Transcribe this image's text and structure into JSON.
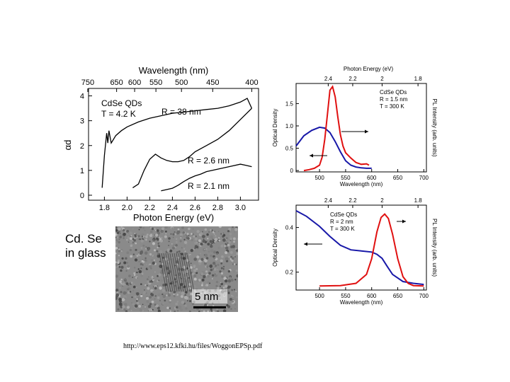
{
  "chart_data": [
    {
      "type": "line",
      "panel": "absorption-4K",
      "title_top_axis": "Wavelength (nm)",
      "top_ticks": [
        "750",
        "650",
        "600",
        "550",
        "500",
        "450",
        "400"
      ],
      "xlabel": "Photon Energy (eV)",
      "x_ticks": [
        "1.8",
        "2.0",
        "2.2",
        "2.4",
        "2.6",
        "2.8",
        "3.0"
      ],
      "xlim": [
        1.66,
        3.16
      ],
      "ylabel": "αd",
      "y_ticks": [
        "0",
        "1",
        "2",
        "3",
        "4"
      ],
      "ylim": [
        -0.2,
        4.3
      ],
      "annotation_lines": [
        "CdSe QDs",
        "T = 4.2 K"
      ],
      "series": [
        {
          "name": "R = 38 nm",
          "x": [
            1.78,
            1.8,
            1.82,
            1.83,
            1.84,
            1.86,
            1.88,
            1.9,
            1.95,
            2.0,
            2.1,
            2.2,
            2.3,
            2.4,
            2.5,
            2.6,
            2.7,
            2.8,
            2.9,
            3.0,
            3.06,
            3.1
          ],
          "y": [
            0.3,
            1.6,
            2.5,
            2.1,
            2.6,
            2.1,
            2.25,
            2.4,
            2.6,
            2.75,
            2.95,
            3.1,
            3.2,
            3.3,
            3.35,
            3.4,
            3.45,
            3.5,
            3.6,
            3.75,
            3.9,
            3.5
          ]
        },
        {
          "name": "R = 2.6 nm",
          "x": [
            2.05,
            2.1,
            2.15,
            2.2,
            2.25,
            2.3,
            2.35,
            2.4,
            2.45,
            2.5,
            2.55,
            2.6,
            2.7,
            2.8,
            2.9,
            3.0,
            3.1
          ],
          "y": [
            0.3,
            0.45,
            1.0,
            1.45,
            1.65,
            1.5,
            1.4,
            1.35,
            1.35,
            1.4,
            1.55,
            1.75,
            2.0,
            2.25,
            2.6,
            3.05,
            3.5
          ]
        },
        {
          "name": "R = 2.1 nm",
          "x": [
            2.3,
            2.4,
            2.45,
            2.5,
            2.55,
            2.6,
            2.65,
            2.7,
            2.8,
            2.9,
            3.0,
            3.05,
            3.1
          ],
          "y": [
            0.18,
            0.28,
            0.4,
            0.55,
            0.68,
            0.78,
            0.85,
            0.95,
            1.05,
            1.15,
            1.25,
            1.2,
            1.15
          ]
        }
      ],
      "curve_labels": [
        "R = 38 nm",
        "R = 2.6 nm",
        "R = 2.1 nm"
      ]
    },
    {
      "type": "line",
      "panel": "optical-density-pl-R1.5",
      "title_top_axis": "Photon Energy (eV)",
      "top_ticks": [
        "2.4",
        "2.2",
        "2",
        "1.8"
      ],
      "xlabel": "Wavelength (nm)",
      "x_ticks": [
        "500",
        "550",
        "600",
        "650",
        "700"
      ],
      "xlim": [
        455,
        705
      ],
      "ylabel": "Optical Density",
      "y_ticks": [
        "0",
        "0.5",
        "1.0",
        "1.5"
      ],
      "ylim": [
        -0.03,
        1.95
      ],
      "right_label": "PL Intensity (arb. units)",
      "annotation_lines": [
        "CdSe QDs",
        "R = 1.5 nm",
        "T = 300 K"
      ],
      "series": [
        {
          "name": "Optical Density",
          "color": "#1818a8",
          "x": [
            455,
            470,
            485,
            500,
            510,
            520,
            530,
            540,
            550,
            560,
            570,
            580,
            590,
            600
          ],
          "y": [
            0.55,
            0.78,
            0.9,
            0.97,
            0.95,
            0.85,
            0.65,
            0.42,
            0.22,
            0.12,
            0.08,
            0.06,
            0.05,
            0.05
          ]
        },
        {
          "name": "PL",
          "color": "#e01010",
          "x": [
            470,
            480,
            490,
            500,
            505,
            510,
            515,
            520,
            525,
            530,
            535,
            540,
            545,
            550,
            560,
            570,
            580,
            590,
            595
          ],
          "y": [
            0.0,
            0.02,
            0.05,
            0.12,
            0.3,
            0.7,
            1.25,
            1.8,
            1.88,
            1.65,
            1.2,
            0.8,
            0.55,
            0.4,
            0.28,
            0.18,
            0.14,
            0.15,
            0.12
          ]
        }
      ]
    },
    {
      "type": "line",
      "panel": "optical-density-pl-R2",
      "top_ticks": [
        "2.4",
        "2.2",
        "2",
        "1.8"
      ],
      "xlabel": "Wavelength (nm)",
      "x_ticks": [
        "500",
        "550",
        "600",
        "650",
        "700"
      ],
      "xlim": [
        455,
        705
      ],
      "ylabel": "Optical Density",
      "y_ticks": [
        "0.2",
        "0.4"
      ],
      "ylim": [
        0.12,
        0.5
      ],
      "right_label": "PL Intensity (arb. units)",
      "annotation_lines": [
        "CdSe QDs",
        "R = 2 nm",
        "T = 300 K"
      ],
      "series": [
        {
          "name": "Optical Density",
          "color": "#1818a8",
          "x": [
            455,
            475,
            500,
            520,
            540,
            560,
            580,
            600,
            610,
            620,
            630,
            640,
            660,
            680,
            700
          ],
          "y": [
            0.475,
            0.45,
            0.405,
            0.36,
            0.32,
            0.3,
            0.295,
            0.29,
            0.28,
            0.262,
            0.225,
            0.19,
            0.158,
            0.15,
            0.145
          ]
        },
        {
          "name": "PL",
          "color": "#e01010",
          "x": [
            500,
            540,
            570,
            590,
            600,
            610,
            618,
            625,
            632,
            640,
            650,
            660,
            670,
            680,
            700
          ],
          "y": [
            0.138,
            0.14,
            0.15,
            0.19,
            0.26,
            0.38,
            0.445,
            0.46,
            0.44,
            0.37,
            0.26,
            0.18,
            0.15,
            0.14,
            0.138
          ]
        }
      ]
    }
  ],
  "tem_image": {
    "caption_line1": "Cd. Se",
    "caption_line2": "in glass",
    "scale_bar": "5 nm"
  },
  "source_url": "http://www.eps12.kfki.hu/files/WoggonEPSp.pdf"
}
